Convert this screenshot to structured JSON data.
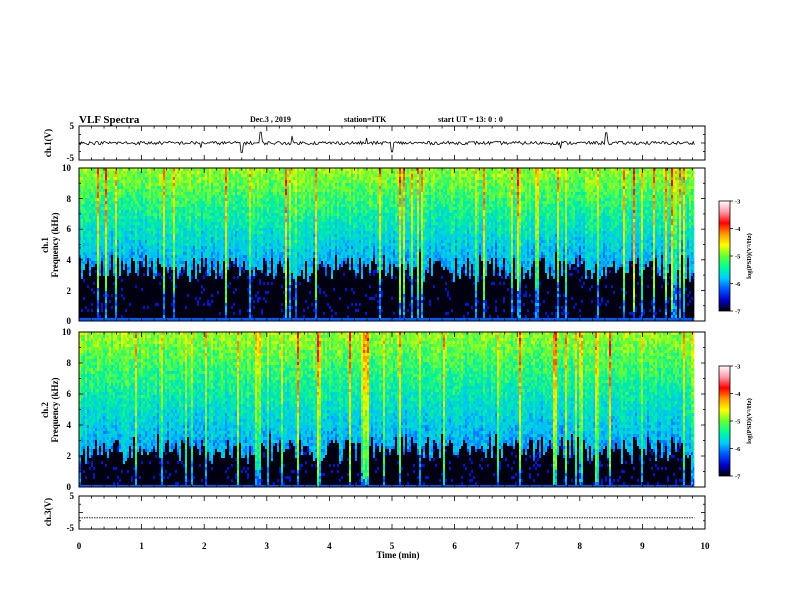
{
  "header": {
    "title": "VLF Spectra",
    "date": "Dec.3 , 2019",
    "station": "station=ITK",
    "start": "start UT = 13: 0 : 0"
  },
  "chart_data": [
    {
      "type": "line",
      "panel": "ch1-waveform",
      "ylabel": "ch.1(V)",
      "ylim": [
        -5,
        5
      ],
      "y_ticks": [
        "5",
        "-5"
      ],
      "xlim": [
        0,
        10
      ],
      "x_extent": [
        0,
        9.83
      ],
      "baseline": 0,
      "noise_amplitude": 0.5,
      "spikes": [
        {
          "x": 2.9,
          "y": 3.2
        },
        {
          "x": 2.6,
          "y": -2.8
        },
        {
          "x": 3.4,
          "y": 2.1
        },
        {
          "x": 5.0,
          "y": -2.6
        },
        {
          "x": 8.42,
          "y": 3.0
        },
        {
          "x": 7.7,
          "y": -1.6
        },
        {
          "x": 1.95,
          "y": -1.4
        },
        {
          "x": 4.6,
          "y": 1.5
        }
      ]
    },
    {
      "type": "heatmap",
      "panel": "ch1-spectrogram",
      "ylabel_lines": [
        "ch.1",
        "Frequency (kHz)"
      ],
      "ylim": [
        0,
        10
      ],
      "y_ticks": [
        "0",
        "2",
        "4",
        "6",
        "8",
        "10"
      ],
      "xlim": [
        0,
        10
      ],
      "x_extent": [
        0,
        9.83
      ],
      "background_cutoff_khz": 3.8,
      "colorbar": {
        "label": "log(PSD)(V²/Hz)",
        "range": [
          -7,
          -3
        ],
        "ticks": [
          "-3",
          "-4",
          "-5",
          "-6",
          "-7"
        ],
        "colors": [
          "#000000",
          "#0000cc",
          "#0055ff",
          "#00ccff",
          "#00ff99",
          "#66ff33",
          "#ffff00",
          "#ff9900",
          "#ff0000",
          "#ff99aa",
          "#ffffff"
        ]
      }
    },
    {
      "type": "heatmap",
      "panel": "ch2-spectrogram",
      "ylabel_lines": [
        "ch.2",
        "Frequency (kHz)"
      ],
      "ylim": [
        0,
        10
      ],
      "y_ticks": [
        "0",
        "2",
        "4",
        "6",
        "8",
        "10"
      ],
      "xlim": [
        0,
        10
      ],
      "x_extent": [
        0,
        9.83
      ],
      "background_cutoff_khz": 2.8,
      "colorbar": {
        "label": "log(PSD)(V²/Hz)",
        "range": [
          -7,
          -3
        ],
        "ticks": [
          "-3",
          "-4",
          "-5",
          "-6",
          "-7"
        ],
        "colors": [
          "#000000",
          "#0000cc",
          "#0055ff",
          "#00ccff",
          "#00ff99",
          "#66ff33",
          "#ffff00",
          "#ff9900",
          "#ff0000",
          "#ff99aa",
          "#ffffff"
        ]
      }
    },
    {
      "type": "line",
      "panel": "ch3-waveform",
      "ylabel": "ch.3(V)",
      "ylim": [
        -5,
        5
      ],
      "y_ticks": [
        "5",
        "-5"
      ],
      "xlim": [
        0,
        10
      ],
      "x_extent": [
        0,
        9.83
      ],
      "baseline": -1.6,
      "xlabel": "Time (min)",
      "x_ticks": [
        "0",
        "1",
        "2",
        "3",
        "4",
        "5",
        "6",
        "7",
        "8",
        "9",
        "10"
      ]
    }
  ]
}
